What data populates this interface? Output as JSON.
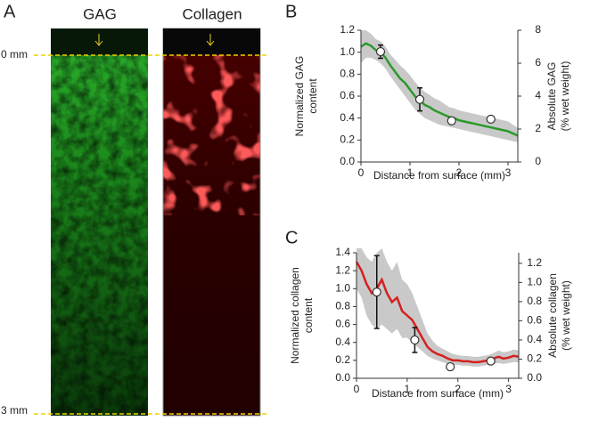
{
  "panel_a": {
    "label": "A",
    "columns": [
      "GAG",
      "Collagen"
    ],
    "depths": [
      "0 mm",
      "3 mm"
    ]
  },
  "chart_data": [
    {
      "type": "line",
      "label": "B",
      "xlabel": "Distance from surface (mm)",
      "ylabel": [
        "Normalized GAG",
        "content"
      ],
      "y2label": [
        "Absolute GAG",
        "(% wet weight)"
      ],
      "xlim": [
        0,
        3.2
      ],
      "xticks": [
        0,
        1,
        2,
        3
      ],
      "ylim": [
        0,
        1.2
      ],
      "yticks": [
        {
          "value": 0,
          "label": "0.0"
        },
        0.2,
        0.4,
        0.6,
        0.8,
        {
          "value": 1,
          "label": "1.0"
        },
        1.2
      ],
      "y2lim": [
        0,
        8
      ],
      "y2ticks": [
        0,
        2,
        4,
        6,
        8
      ],
      "color": "#2a9a2a",
      "band_color": "#c9c9c9",
      "x": [
        0,
        0.1,
        0.2,
        0.3,
        0.4,
        0.5,
        0.6,
        0.7,
        0.8,
        0.9,
        1,
        1.1,
        1.2,
        1.3,
        1.4,
        1.5,
        1.6,
        1.7,
        1.8,
        1.9,
        2,
        2.1,
        2.2,
        2.3,
        2.4,
        2.5,
        2.6,
        2.7,
        2.8,
        2.9,
        3,
        3.1,
        3.2
      ],
      "values": [
        1.05,
        1.08,
        1.06,
        1.02,
        1.0,
        0.95,
        0.88,
        0.82,
        0.76,
        0.72,
        0.66,
        0.6,
        0.56,
        0.52,
        0.5,
        0.47,
        0.45,
        0.43,
        0.41,
        0.4,
        0.38,
        0.37,
        0.36,
        0.35,
        0.34,
        0.33,
        0.32,
        0.31,
        0.3,
        0.29,
        0.28,
        0.26,
        0.24
      ],
      "lower": [
        0.9,
        0.95,
        0.95,
        0.93,
        0.9,
        0.85,
        0.78,
        0.72,
        0.66,
        0.6,
        0.54,
        0.48,
        0.44,
        0.4,
        0.38,
        0.36,
        0.34,
        0.33,
        0.32,
        0.31,
        0.3,
        0.29,
        0.28,
        0.27,
        0.26,
        0.25,
        0.24,
        0.23,
        0.22,
        0.21,
        0.2,
        0.19,
        0.18
      ],
      "upper": [
        1.2,
        1.2,
        1.17,
        1.12,
        1.1,
        1.05,
        0.98,
        0.93,
        0.88,
        0.84,
        0.79,
        0.73,
        0.68,
        0.64,
        0.61,
        0.58,
        0.56,
        0.53,
        0.5,
        0.49,
        0.47,
        0.46,
        0.45,
        0.44,
        0.43,
        0.42,
        0.41,
        0.4,
        0.39,
        0.38,
        0.37,
        0.34,
        0.31
      ],
      "points": {
        "axis": "y2",
        "x": [
          0.4,
          1.2,
          1.85,
          2.65
        ],
        "values": [
          6.7,
          3.8,
          2.5,
          2.6
        ],
        "errors": [
          0.4,
          0.7,
          0.15,
          0.15
        ]
      }
    },
    {
      "type": "line",
      "label": "C",
      "xlabel": "Distance from surface (mm)",
      "ylabel": [
        "Normalized collagen",
        "content"
      ],
      "y2label": [
        "Absolute collagen",
        "(% wet weight)"
      ],
      "xlim": [
        0,
        3.2
      ],
      "xticks": [
        0,
        1,
        2,
        3
      ],
      "ylim": [
        0,
        1.4
      ],
      "yticks": [
        {
          "value": 0,
          "label": "0.0"
        },
        0.2,
        0.4,
        0.6,
        0.8,
        {
          "value": 1,
          "label": "1.0"
        },
        1.2,
        1.4
      ],
      "y2lim": [
        0,
        1.31
      ],
      "y2ticks": [
        {
          "value": 0,
          "label": "0.0"
        },
        0.2,
        0.4,
        0.6,
        0.8,
        {
          "value": 1,
          "label": "1.0"
        },
        1.2
      ],
      "color": "#d42020",
      "band_color": "#c9c9c9",
      "x": [
        0,
        0.1,
        0.2,
        0.3,
        0.4,
        0.5,
        0.6,
        0.7,
        0.8,
        0.9,
        1,
        1.1,
        1.2,
        1.3,
        1.4,
        1.5,
        1.6,
        1.7,
        1.8,
        1.9,
        2,
        2.1,
        2.2,
        2.3,
        2.4,
        2.5,
        2.6,
        2.7,
        2.8,
        2.9,
        3,
        3.1,
        3.2
      ],
      "values": [
        1.3,
        1.2,
        1.05,
        0.95,
        1.0,
        1.1,
        0.95,
        0.85,
        0.9,
        0.75,
        0.7,
        0.65,
        0.55,
        0.45,
        0.35,
        0.3,
        0.27,
        0.25,
        0.22,
        0.2,
        0.2,
        0.19,
        0.19,
        0.18,
        0.18,
        0.19,
        0.2,
        0.22,
        0.24,
        0.22,
        0.23,
        0.25,
        0.24
      ],
      "lower": [
        1.0,
        0.9,
        0.7,
        0.6,
        0.55,
        0.6,
        0.55,
        0.5,
        0.55,
        0.45,
        0.45,
        0.4,
        0.35,
        0.3,
        0.25,
        0.22,
        0.2,
        0.18,
        0.16,
        0.15,
        0.15,
        0.14,
        0.14,
        0.13,
        0.13,
        0.14,
        0.15,
        0.16,
        0.17,
        0.16,
        0.17,
        0.18,
        0.18
      ],
      "upper": [
        1.45,
        1.45,
        1.35,
        1.3,
        1.4,
        1.45,
        1.3,
        1.2,
        1.3,
        1.1,
        1.05,
        0.95,
        0.8,
        0.65,
        0.5,
        0.42,
        0.36,
        0.33,
        0.3,
        0.27,
        0.26,
        0.25,
        0.25,
        0.24,
        0.24,
        0.25,
        0.26,
        0.28,
        0.31,
        0.29,
        0.3,
        0.32,
        0.31
      ],
      "points": {
        "axis": "y2",
        "x": [
          0.4,
          1.15,
          1.85,
          2.65
        ],
        "values": [
          0.9,
          0.4,
          0.12,
          0.18
        ],
        "errors": [
          0.38,
          0.13,
          0.02,
          0.02
        ]
      }
    }
  ]
}
